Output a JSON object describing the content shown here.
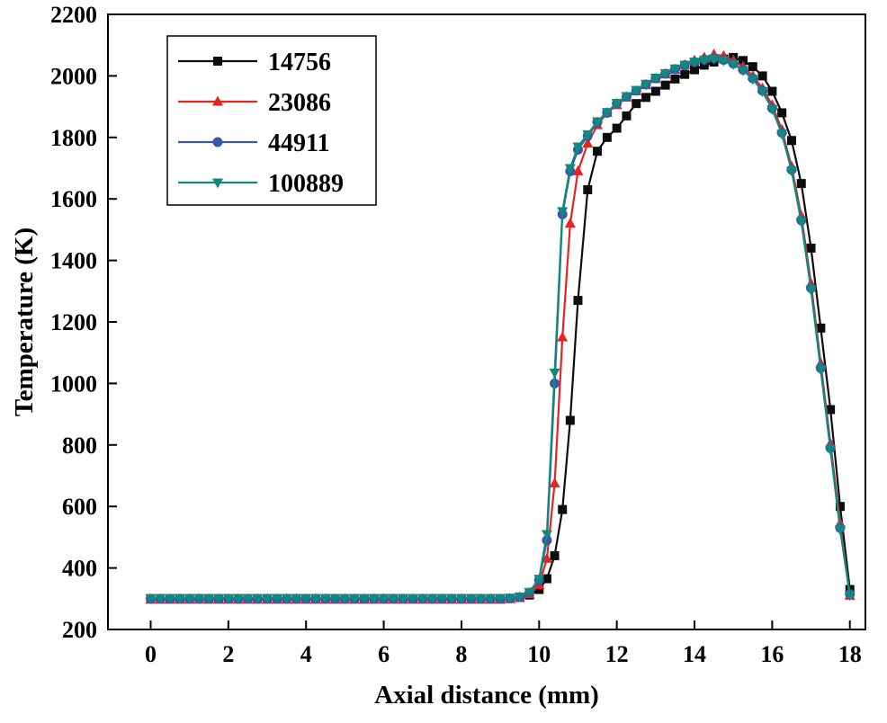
{
  "figure": {
    "background": "#ffffff",
    "frame_color": "#000000"
  },
  "chart_data": {
    "type": "line",
    "title": "",
    "xlabel": "Axial distance (mm)",
    "ylabel": "Temperature (K)",
    "xlim": [
      -1.1,
      18.4
    ],
    "ylim": [
      200,
      2200
    ],
    "xticks": [
      0,
      2,
      4,
      6,
      8,
      10,
      12,
      14,
      16,
      18
    ],
    "yticks": [
      200,
      400,
      600,
      800,
      1000,
      1200,
      1400,
      1600,
      1800,
      2000,
      2200
    ],
    "grid": false,
    "legend_position": "top-left",
    "x": [
      0,
      0.25,
      0.5,
      0.75,
      1,
      1.25,
      1.5,
      1.75,
      2,
      2.25,
      2.5,
      2.75,
      3,
      3.25,
      3.5,
      3.75,
      4,
      4.25,
      4.5,
      4.75,
      5,
      5.25,
      5.5,
      5.75,
      6,
      6.25,
      6.5,
      6.75,
      7,
      7.25,
      7.5,
      7.75,
      8,
      8.25,
      8.5,
      8.75,
      9,
      9.25,
      9.5,
      9.75,
      10,
      10.2,
      10.4,
      10.6,
      10.8,
      11,
      11.25,
      11.5,
      11.75,
      12,
      12.25,
      12.5,
      12.75,
      13,
      13.25,
      13.5,
      13.75,
      14,
      14.25,
      14.5,
      14.75,
      15,
      15.25,
      15.5,
      15.75,
      16,
      16.25,
      16.5,
      16.75,
      17,
      17.25,
      17.5,
      17.75,
      18
    ],
    "series": [
      {
        "name": "14756",
        "color": "#0d0d0d",
        "marker": "square",
        "values": [
          300,
          300,
          300,
          300,
          300,
          300,
          300,
          300,
          300,
          300,
          300,
          300,
          300,
          300,
          300,
          300,
          300,
          300,
          300,
          300,
          300,
          300,
          300,
          300,
          300,
          300,
          300,
          300,
          300,
          300,
          300,
          300,
          300,
          300,
          300,
          300,
          300,
          301,
          304,
          312,
          330,
          365,
          440,
          590,
          880,
          1270,
          1630,
          1755,
          1800,
          1830,
          1870,
          1910,
          1930,
          1950,
          1970,
          1990,
          2005,
          2020,
          2035,
          2045,
          2055,
          2060,
          2050,
          2030,
          2000,
          1950,
          1880,
          1790,
          1650,
          1440,
          1180,
          915,
          600,
          330
        ]
      },
      {
        "name": "23086",
        "color": "#e62420",
        "marker": "triangle-up",
        "values": [
          297,
          297,
          297,
          297,
          297,
          297,
          297,
          297,
          297,
          297,
          297,
          297,
          297,
          297,
          297,
          297,
          297,
          297,
          297,
          297,
          297,
          297,
          297,
          297,
          297,
          297,
          297,
          297,
          297,
          297,
          297,
          297,
          297,
          297,
          297,
          297,
          297,
          299,
          303,
          315,
          345,
          430,
          675,
          1150,
          1520,
          1690,
          1780,
          1840,
          1880,
          1905,
          1930,
          1950,
          1970,
          1990,
          2005,
          2020,
          2035,
          2050,
          2060,
          2070,
          2065,
          2050,
          2030,
          2000,
          1960,
          1905,
          1825,
          1705,
          1545,
          1325,
          1065,
          805,
          545,
          310
        ]
      },
      {
        "name": "44911",
        "color": "#3d55a8",
        "marker": "circle",
        "values": [
          300,
          300,
          300,
          300,
          300,
          300,
          300,
          300,
          300,
          300,
          300,
          300,
          300,
          300,
          300,
          300,
          300,
          300,
          300,
          300,
          300,
          300,
          300,
          300,
          300,
          300,
          300,
          300,
          300,
          300,
          300,
          300,
          300,
          300,
          300,
          300,
          300,
          301,
          305,
          320,
          360,
          490,
          1000,
          1550,
          1690,
          1760,
          1805,
          1850,
          1880,
          1910,
          1932,
          1952,
          1972,
          1992,
          2007,
          2022,
          2035,
          2045,
          2053,
          2058,
          2052,
          2040,
          2020,
          1992,
          1952,
          1895,
          1815,
          1695,
          1530,
          1310,
          1050,
          790,
          530,
          315
        ]
      },
      {
        "name": "100889",
        "color": "#12897e",
        "marker": "triangle-down",
        "values": [
          302,
          302,
          302,
          302,
          302,
          302,
          302,
          302,
          302,
          302,
          302,
          302,
          302,
          302,
          302,
          302,
          302,
          302,
          302,
          302,
          302,
          302,
          302,
          302,
          302,
          302,
          302,
          302,
          302,
          302,
          302,
          302,
          302,
          302,
          302,
          302,
          302,
          303,
          307,
          322,
          365,
          510,
          1035,
          1560,
          1700,
          1770,
          1810,
          1852,
          1882,
          1912,
          1934,
          1954,
          1974,
          1994,
          2009,
          2024,
          2036,
          2046,
          2052,
          2056,
          2050,
          2038,
          2018,
          1990,
          1950,
          1892,
          1812,
          1692,
          1526,
          1305,
          1045,
          785,
          525,
          312
        ]
      }
    ]
  }
}
